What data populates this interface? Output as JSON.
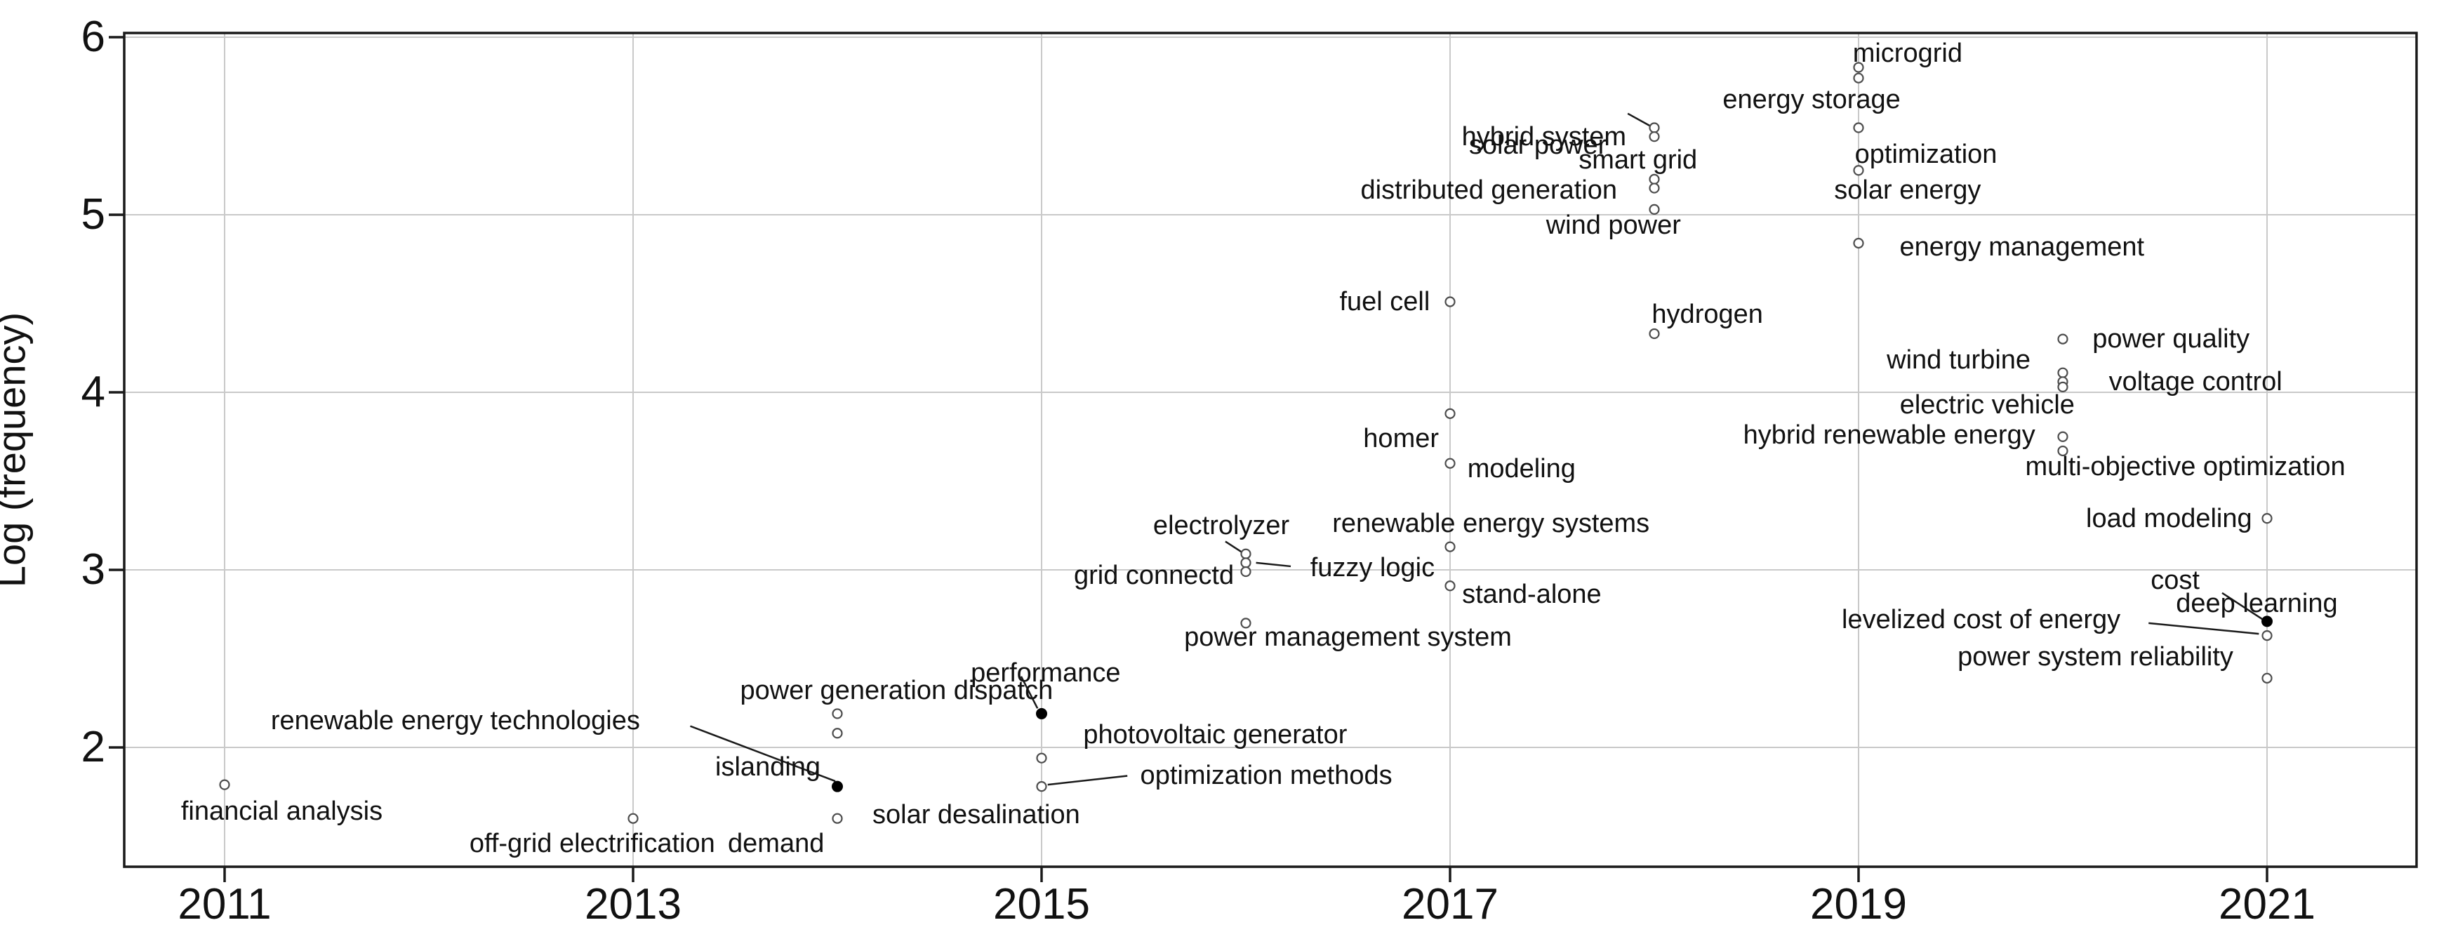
{
  "chart_data": {
    "type": "scatter",
    "title": "",
    "xlabel": "",
    "ylabel": "Log (frequency)",
    "x_ticks": [
      "2011",
      "2013",
      "2015",
      "2017",
      "2019",
      "2021"
    ],
    "x_tick_years": [
      2011,
      2013,
      2015,
      2017,
      2019,
      2021
    ],
    "y_ticks": [
      "2",
      "3",
      "4",
      "5",
      "6"
    ],
    "y_tick_values": [
      2,
      3,
      4,
      5,
      6
    ],
    "xlim": [
      2010.5,
      2021.73
    ],
    "ylim": [
      1.33,
      6.02
    ],
    "grid": true,
    "legend": false,
    "colors": {
      "marker_open_stroke": "#4d4d4d",
      "marker_filled": "#000000",
      "grid": "#c9c9c9",
      "spine": "#1a1a1a",
      "text": "#111111",
      "leader": "#1a1a1a"
    },
    "terms": [
      {
        "term": "financial analysis",
        "year": 2011,
        "logf": 1.79,
        "marker": "open",
        "label": {
          "x": 2011.28,
          "y": 1.64
        },
        "leader": null
      },
      {
        "term": "renewable energy technologies",
        "year": 2014,
        "logf": 1.78,
        "marker": "filled",
        "label": {
          "x": 2012.13,
          "y": 2.15
        },
        "leader": [
          2013.28,
          2.12,
          2013.99,
          1.81
        ]
      },
      {
        "term": "islanding",
        "year": 2014,
        "logf": 1.78,
        "marker": "none",
        "label": {
          "x": 2013.66,
          "y": 1.89
        },
        "leader": null
      },
      {
        "term": "off-grid electrification",
        "year": 2013,
        "logf": 1.6,
        "marker": "open",
        "label": {
          "x": 2012.8,
          "y": 1.46
        },
        "leader": null
      },
      {
        "term": "demand",
        "year": 2014,
        "logf": 1.6,
        "marker": "none",
        "label": {
          "x": 2013.7,
          "y": 1.46
        },
        "leader": null
      },
      {
        "term": "solar desalination",
        "year": 2014,
        "logf": 1.6,
        "marker": "open",
        "label": {
          "x": 2014.68,
          "y": 1.62
        },
        "leader": null
      },
      {
        "term": "power generation dispatch",
        "year": 2014,
        "logf": 2.19,
        "marker": "open",
        "label": {
          "x": 2014.29,
          "y": 2.32
        },
        "leader": null
      },
      {
        "term": "performance",
        "year": 2015,
        "logf": 2.19,
        "marker": "filled",
        "label": {
          "x": 2015.02,
          "y": 2.42
        },
        "leader": [
          2014.9,
          2.4,
          2014.98,
          2.22
        ]
      },
      {
        "term": "photovoltaic generator",
        "year": 2015,
        "logf": 1.94,
        "marker": "open",
        "label": {
          "x": 2015.85,
          "y": 2.07
        },
        "leader": null
      },
      {
        "term": "optimization methods",
        "year": 2015,
        "logf": 1.78,
        "marker": "open",
        "label": {
          "x": 2016.1,
          "y": 1.84
        },
        "leader": [
          2015.42,
          1.84,
          2015.03,
          1.79
        ]
      },
      {
        "term": "electrolyzer",
        "year": 2016,
        "logf": 3.09,
        "marker": "open",
        "label": {
          "x": 2015.88,
          "y": 3.25
        },
        "leader": [
          2015.9,
          3.16,
          2015.98,
          3.1
        ]
      },
      {
        "term": "fuzzy logic",
        "year": 2016,
        "logf": 3.04,
        "marker": "open",
        "label": {
          "x": 2016.62,
          "y": 3.01
        },
        "leader": [
          2016.22,
          3.02,
          2016.05,
          3.04
        ]
      },
      {
        "term": "grid connectd",
        "year": 2016,
        "logf": 2.99,
        "marker": "open",
        "label": {
          "x": 2015.55,
          "y": 2.97
        },
        "leader": null
      },
      {
        "term": "power management system",
        "year": 2016,
        "logf": 2.7,
        "marker": "open",
        "label": {
          "x": 2016.5,
          "y": 2.62
        },
        "leader": null
      },
      {
        "term": "fuel cell",
        "year": 2017,
        "logf": 4.51,
        "marker": "open",
        "label": {
          "x": 2016.68,
          "y": 4.51
        },
        "leader": null
      },
      {
        "term": "homer",
        "year": 2017,
        "logf": 3.88,
        "marker": "open",
        "label": {
          "x": 2016.76,
          "y": 3.74
        },
        "leader": null
      },
      {
        "term": "modeling",
        "year": 2017,
        "logf": 3.6,
        "marker": "open",
        "label": {
          "x": 2017.35,
          "y": 3.57
        },
        "leader": null
      },
      {
        "term": "renewable energy systems",
        "year": 2017,
        "logf": 3.13,
        "marker": "open",
        "label": {
          "x": 2017.2,
          "y": 3.26
        },
        "leader": null
      },
      {
        "term": "stand-alone",
        "year": 2017,
        "logf": 2.91,
        "marker": "open",
        "label": {
          "x": 2017.4,
          "y": 2.86
        },
        "leader": null
      },
      {
        "term": "solar power",
        "year": 2018,
        "logf": 5.49,
        "marker": "open",
        "label": {
          "x": 2017.43,
          "y": 5.39
        },
        "leader": [
          2017.87,
          5.57,
          2017.98,
          5.5
        ]
      },
      {
        "term": "hybrid system",
        "year": 2018,
        "logf": 5.44,
        "marker": "open",
        "label": {
          "x": 2017.46,
          "y": 5.44
        },
        "leader": null
      },
      {
        "term": "smart grid",
        "year": 2018,
        "logf": 5.2,
        "marker": "open",
        "label": {
          "x": 2017.92,
          "y": 5.31
        },
        "leader": null
      },
      {
        "term": "distributed generation",
        "year": 2018,
        "logf": 5.15,
        "marker": "open",
        "label": {
          "x": 2017.19,
          "y": 5.14
        },
        "leader": null
      },
      {
        "term": "wind power",
        "year": 2018,
        "logf": 5.03,
        "marker": "open",
        "label": {
          "x": 2017.8,
          "y": 4.94
        },
        "leader": null
      },
      {
        "term": "hydrogen",
        "year": 2018,
        "logf": 4.33,
        "marker": "open",
        "label": {
          "x": 2018.26,
          "y": 4.44
        },
        "leader": null
      },
      {
        "term": "microgrid",
        "year": 2019,
        "logf": 5.83,
        "marker": "open",
        "label": {
          "x": 2019.24,
          "y": 5.91
        },
        "leader": null
      },
      {
        "term": "energy storage",
        "year": 2019,
        "logf": 5.77,
        "marker": "open",
        "label": {
          "x": 2018.77,
          "y": 5.65
        },
        "leader": null
      },
      {
        "term": "optimization",
        "year": 2019,
        "logf": 5.49,
        "marker": "open",
        "label": {
          "x": 2019.33,
          "y": 5.34
        },
        "leader": null
      },
      {
        "term": "solar energy",
        "year": 2019,
        "logf": 5.25,
        "marker": "open",
        "label": {
          "x": 2019.24,
          "y": 5.14
        },
        "leader": null
      },
      {
        "term": "energy management",
        "year": 2019,
        "logf": 4.84,
        "marker": "open",
        "label": {
          "x": 2019.8,
          "y": 4.82
        },
        "leader": null
      },
      {
        "term": "power quality",
        "year": 2020,
        "logf": 4.3,
        "marker": "open",
        "label": {
          "x": 2020.53,
          "y": 4.3
        },
        "leader": null
      },
      {
        "term": "wind turbine",
        "year": 2020,
        "logf": 4.11,
        "marker": "open",
        "label": {
          "x": 2019.49,
          "y": 4.18
        },
        "leader": null
      },
      {
        "term": "voltage control",
        "year": 2020,
        "logf": 4.06,
        "marker": "open",
        "label": {
          "x": 2020.65,
          "y": 4.06
        },
        "leader": null
      },
      {
        "term": "electric vehicle",
        "year": 2020,
        "logf": 4.03,
        "marker": "open",
        "label": {
          "x": 2019.63,
          "y": 3.93
        },
        "leader": null
      },
      {
        "term": "hybrid renewable energy",
        "year": 2020,
        "logf": 3.75,
        "marker": "open",
        "label": {
          "x": 2019.15,
          "y": 3.76
        },
        "leader": null
      },
      {
        "term": "multi-objective optimization",
        "year": 2020,
        "logf": 3.67,
        "marker": "open",
        "label": {
          "x": 2020.6,
          "y": 3.58
        },
        "leader": null
      },
      {
        "term": "load modeling",
        "year": 2021,
        "logf": 3.29,
        "marker": "open",
        "label": {
          "x": 2020.52,
          "y": 3.29
        },
        "leader": null
      },
      {
        "term": "cost",
        "year": 2021,
        "logf": 2.71,
        "marker": "filled",
        "label": {
          "x": 2020.55,
          "y": 2.94
        },
        "leader": [
          2020.78,
          2.87,
          2020.98,
          2.72
        ]
      },
      {
        "term": "deep learning",
        "year": 2021,
        "logf": 2.71,
        "marker": "none",
        "label": {
          "x": 2020.95,
          "y": 2.81
        },
        "leader": null
      },
      {
        "term": "levelized cost of energy",
        "year": 2021,
        "logf": 2.63,
        "marker": "open",
        "label": {
          "x": 2019.6,
          "y": 2.72
        },
        "leader": [
          2020.42,
          2.7,
          2020.96,
          2.64
        ]
      },
      {
        "term": "power system reliability",
        "year": 2021,
        "logf": 2.39,
        "marker": "open",
        "label": {
          "x": 2020.16,
          "y": 2.51
        },
        "leader": null
      }
    ],
    "extra_points": [
      {
        "year": 2014,
        "logf": 2.08,
        "marker": "open"
      }
    ]
  }
}
